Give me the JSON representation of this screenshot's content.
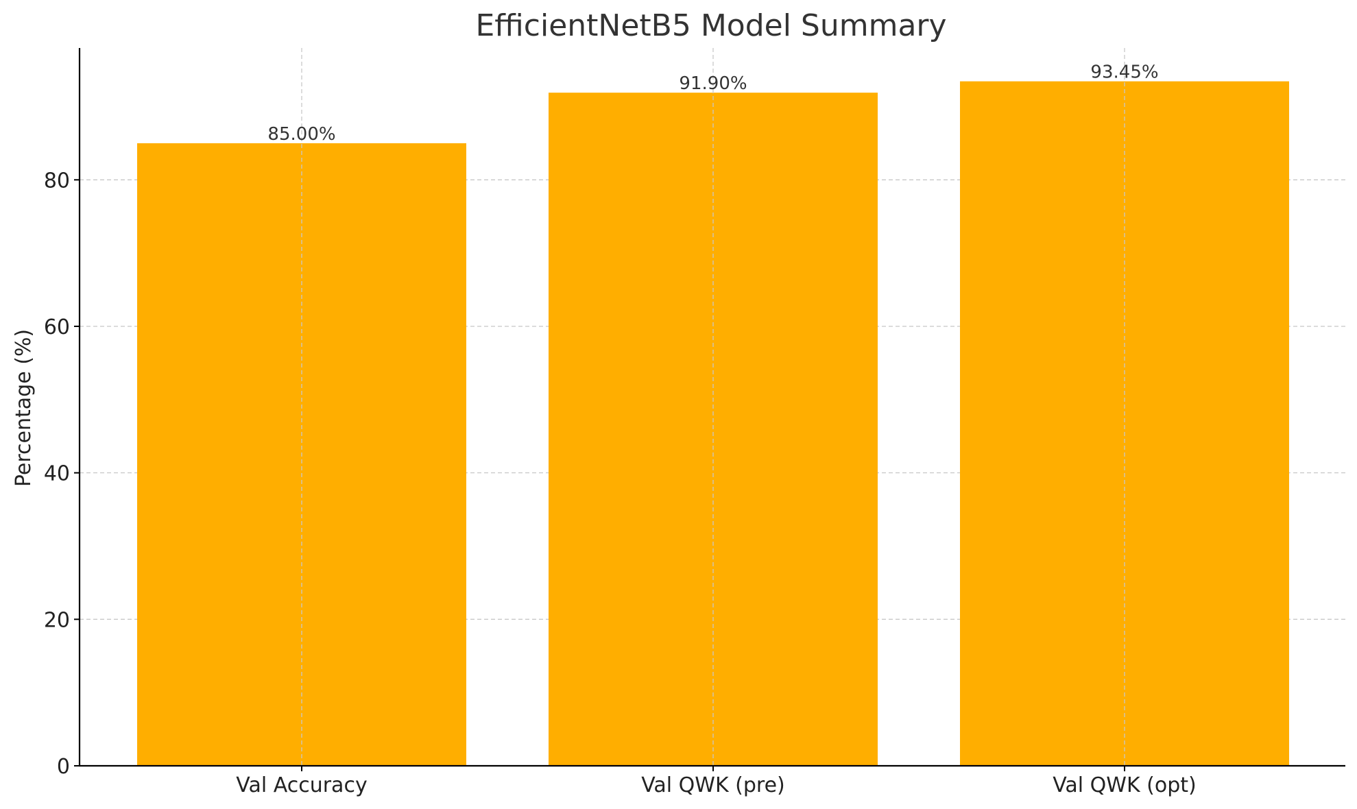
{
  "chart_data": {
    "type": "bar",
    "title": "EfficientNetB5 Model Summary",
    "xlabel": "",
    "ylabel": "Percentage (%)",
    "categories": [
      "Val Accuracy",
      "Val QWK (pre)",
      "Val QWK (opt)"
    ],
    "values": [
      85.0,
      91.9,
      93.45
    ],
    "data_labels": [
      "85.00%",
      "91.90%",
      "93.45%"
    ],
    "ylim": [
      0,
      98
    ],
    "yticks": [
      0,
      20,
      40,
      60,
      80
    ],
    "ytick_labels": [
      "0",
      "20",
      "40",
      "60",
      "80"
    ],
    "grid": true,
    "bar_color": "#FFAE00"
  }
}
